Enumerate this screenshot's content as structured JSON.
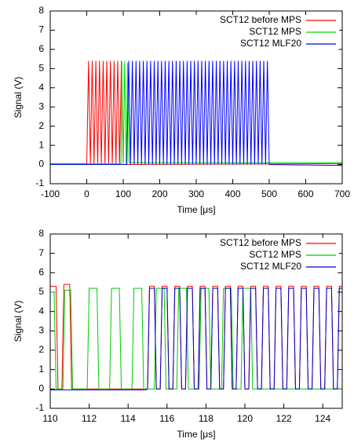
{
  "chart_data": [
    {
      "type": "line",
      "x_label": "Time [μs]",
      "y_label": "Signal (V)",
      "xlim": [
        -100,
        700
      ],
      "ylim": [
        -1,
        8
      ],
      "xticks": [
        -100,
        0,
        100,
        200,
        300,
        400,
        500,
        600,
        700
      ],
      "yticks": [
        -1,
        0,
        1,
        2,
        3,
        4,
        5,
        6,
        7,
        8
      ],
      "legend": "upper right",
      "series": [
        {
          "name": "SCT12 before MPS",
          "color": "#ff0000",
          "x": [
            -100,
            -2,
            0,
            5,
            10,
            15,
            20,
            25,
            30,
            35,
            40,
            45,
            50,
            55,
            60,
            65,
            70,
            75,
            80,
            85,
            90,
            95,
            100,
            700
          ],
          "values": [
            0.05,
            0.05,
            0,
            5.4,
            0,
            5.4,
            0,
            5.4,
            0,
            5.4,
            0,
            5.4,
            0,
            5.4,
            0,
            5.4,
            0,
            5.4,
            0,
            5.4,
            0,
            5.4,
            0,
            0.05
          ]
        },
        {
          "name": "SCT12 MPS",
          "color": "#00dd00",
          "x": [
            -100,
            94,
            96,
            100,
            104,
            108,
            112,
            116,
            700
          ],
          "values": [
            0.05,
            0.05,
            5.4,
            0,
            5.4,
            0,
            5.3,
            0.1,
            0.1
          ]
        },
        {
          "name": "SCT12 MLF20",
          "color": "#0000ff",
          "x": [
            -100,
            108,
            110,
            115,
            120,
            125,
            130,
            135,
            140,
            145,
            150,
            155,
            160,
            165,
            170,
            175,
            180,
            185,
            190,
            195,
            200,
            205,
            210,
            215,
            220,
            225,
            230,
            235,
            240,
            245,
            250,
            255,
            260,
            265,
            270,
            275,
            280,
            285,
            290,
            295,
            300,
            305,
            310,
            315,
            320,
            325,
            330,
            335,
            340,
            345,
            350,
            355,
            360,
            365,
            370,
            375,
            380,
            385,
            390,
            395,
            400,
            405,
            410,
            415,
            420,
            425,
            430,
            435,
            440,
            445,
            450,
            455,
            460,
            465,
            470,
            475,
            480,
            485,
            490,
            495,
            500,
            700
          ],
          "values": [
            0,
            0,
            0,
            5.4,
            0,
            5.4,
            0,
            5.4,
            0,
            5.4,
            0,
            5.4,
            0,
            5.4,
            0,
            5.4,
            0,
            5.4,
            0,
            5.4,
            0,
            5.4,
            0,
            5.4,
            0,
            5.4,
            0,
            5.4,
            0,
            5.4,
            0,
            5.4,
            0,
            5.4,
            0,
            5.4,
            0,
            5.4,
            0,
            5.4,
            0,
            5.4,
            0,
            5.4,
            0,
            5.4,
            0,
            5.4,
            0,
            5.4,
            0,
            5.4,
            0,
            5.4,
            0,
            5.4,
            0,
            5.4,
            0,
            5.4,
            0,
            5.4,
            0,
            5.4,
            0,
            5.4,
            0,
            5.4,
            0,
            5.4,
            0,
            5.4,
            0,
            5.4,
            0,
            5.4,
            0,
            5.4,
            0,
            5.4,
            0,
            -0.05
          ]
        }
      ]
    },
    {
      "type": "line",
      "x_label": "Time [μs]",
      "y_label": "Signal (V)",
      "xlim": [
        110,
        125
      ],
      "ylim": [
        -1,
        8
      ],
      "xticks": [
        110,
        112,
        114,
        116,
        118,
        120,
        122,
        124
      ],
      "yticks": [
        -1,
        0,
        1,
        2,
        3,
        4,
        5,
        6,
        7,
        8
      ],
      "legend": "upper right",
      "series": [
        {
          "name": "SCT12 before MPS",
          "color": "#ff0000",
          "x": [
            110,
            110.3,
            110.4,
            110.6,
            110.7,
            111.0,
            111.1,
            114.9,
            115.0,
            115.1,
            115.35,
            115.45,
            115.65,
            115.75,
            116.0,
            116.1,
            116.3,
            116.4,
            116.65,
            116.75,
            116.95,
            117.05,
            117.3,
            117.4,
            117.6,
            117.7,
            117.95,
            118.05,
            118.25,
            118.35,
            118.6,
            118.7,
            118.9,
            119.0,
            119.25,
            119.35,
            119.55,
            119.65,
            119.9,
            120.0,
            120.2,
            120.3,
            120.55,
            120.65,
            120.85,
            120.95,
            121.2,
            121.3,
            121.5,
            121.6,
            121.85,
            121.95,
            122.15,
            122.25,
            122.5,
            122.6,
            122.8,
            122.9,
            123.15,
            123.25,
            123.45,
            123.55,
            123.8,
            123.9,
            124.1,
            124.2,
            124.45,
            124.55,
            124.75,
            124.85,
            125
          ],
          "values": [
            5.3,
            5.3,
            0,
            0,
            5.4,
            5.4,
            0,
            0,
            0,
            5.3,
            5.3,
            0,
            0,
            5.3,
            5.3,
            0,
            0,
            5.3,
            5.3,
            0,
            0,
            5.3,
            5.3,
            0,
            0,
            5.3,
            5.3,
            0,
            0,
            5.3,
            5.3,
            0,
            0,
            5.3,
            5.3,
            0,
            0,
            5.3,
            5.3,
            0,
            0,
            5.3,
            5.3,
            0,
            0,
            5.3,
            5.3,
            0,
            0,
            5.3,
            5.3,
            0,
            0,
            5.3,
            5.3,
            0,
            0,
            5.3,
            5.3,
            0,
            0,
            5.3,
            5.3,
            0,
            0,
            5.3,
            5.3,
            0,
            0,
            5.3,
            5.3
          ]
        },
        {
          "name": "SCT12 MPS",
          "color": "#00cc00",
          "x": [
            110,
            110.2,
            110.3,
            110.65,
            110.75,
            111.05,
            111.15,
            111.9,
            112.0,
            112.4,
            112.5,
            113.05,
            113.15,
            113.55,
            113.65,
            114.2,
            114.3,
            114.7,
            114.8,
            115.35,
            115.45,
            115.85,
            115.95,
            116.5,
            116.6,
            117.0,
            117.1,
            117.65,
            117.75,
            118.15,
            118.25,
            118.8,
            118.9,
            119.3,
            119.4,
            119.8,
            119.9,
            120.3,
            120.4,
            125
          ],
          "values": [
            5.0,
            5.0,
            0,
            0,
            5.1,
            5.1,
            0,
            0,
            5.2,
            5.2,
            0,
            0,
            5.2,
            5.2,
            0,
            0,
            5.2,
            5.2,
            0,
            0,
            5.2,
            5.2,
            0,
            0,
            5.2,
            5.2,
            0,
            0,
            5.2,
            5.2,
            0,
            0,
            5.2,
            5.2,
            0,
            0,
            5.2,
            5.2,
            0,
            0
          ]
        },
        {
          "name": "SCT12 MLF20",
          "color": "#0000cc",
          "x": [
            110,
            114.9,
            115.0,
            115.1,
            115.35,
            115.45,
            115.65,
            115.75,
            116.0,
            116.1,
            116.3,
            116.4,
            116.65,
            116.75,
            116.95,
            117.05,
            117.3,
            117.4,
            117.6,
            117.7,
            117.95,
            118.05,
            118.25,
            118.35,
            118.6,
            118.7,
            118.9,
            119.0,
            119.25,
            119.35,
            119.55,
            119.65,
            119.9,
            120.0,
            120.2,
            120.3,
            120.55,
            120.65,
            120.85,
            120.95,
            121.2,
            121.3,
            121.5,
            121.6,
            121.85,
            121.95,
            122.15,
            122.25,
            122.5,
            122.6,
            122.8,
            122.9,
            123.15,
            123.25,
            123.45,
            123.55,
            123.8,
            123.9,
            124.1,
            124.2,
            124.45,
            124.55,
            124.75,
            124.85,
            125
          ],
          "values": [
            -0.05,
            -0.05,
            0,
            5.2,
            5.2,
            0,
            0,
            5.2,
            5.2,
            0,
            0,
            5.2,
            5.2,
            0,
            0,
            5.2,
            5.2,
            0,
            0,
            5.2,
            5.2,
            0,
            0,
            5.2,
            5.2,
            0,
            0,
            5.2,
            5.2,
            0,
            0,
            5.2,
            5.2,
            0,
            0,
            5.2,
            5.2,
            0,
            0,
            5.2,
            5.2,
            0,
            0,
            5.2,
            5.2,
            0,
            0,
            5.2,
            5.2,
            0,
            0,
            5.2,
            5.2,
            0,
            0,
            5.2,
            5.2,
            0,
            0,
            5.2,
            5.2,
            0,
            0,
            5.2,
            5.2
          ]
        }
      ]
    }
  ]
}
